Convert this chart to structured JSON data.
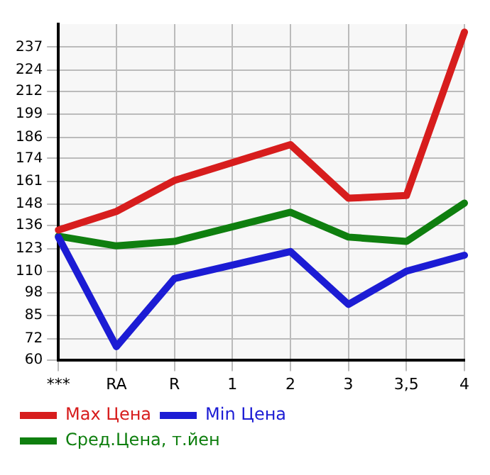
{
  "chart_data": {
    "type": "line",
    "categories": [
      "***",
      "RA",
      "R",
      "1",
      "2",
      "3",
      "3,5",
      "4"
    ],
    "series": [
      {
        "name": "Max Цена",
        "color": "#d71d1d",
        "values": [
          133.5,
          144,
          161.5,
          null,
          181.8,
          151.5,
          153,
          245.5
        ]
      },
      {
        "name": "Min Цена",
        "color": "#1c1cd4",
        "values": [
          129.5,
          67.5,
          106,
          null,
          121.3,
          91.4,
          110.2,
          119.2
        ]
      },
      {
        "name": "Сред.Цена, т.йен",
        "color": "#0f7f0f",
        "values": [
          130,
          124.5,
          127,
          null,
          143.5,
          129.5,
          127,
          148.7
        ]
      }
    ],
    "ylim": [
      60,
      250
    ],
    "yticks": [
      60,
      72,
      85,
      98,
      110,
      123,
      136,
      148,
      161,
      174,
      186,
      199,
      212,
      224,
      237
    ],
    "grid": true,
    "legend": "bottom",
    "marker": "none",
    "line_style": "solid"
  }
}
